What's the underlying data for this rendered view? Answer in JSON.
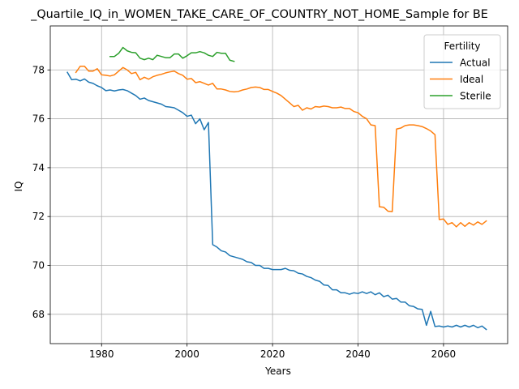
{
  "chart_data": {
    "type": "line",
    "title": "_Quartile_IQ_in_WOMEN_TAKE_CARE_OF_COUNTRY_NOT_HOME_Sample for BE",
    "xlabel": "Years",
    "ylabel": "IQ",
    "xlim": [
      1968,
      2075
    ],
    "ylim": [
      66.8,
      79.8
    ],
    "xticks": [
      1980,
      2000,
      2020,
      2040,
      2060
    ],
    "yticks": [
      68,
      70,
      72,
      74,
      76,
      78
    ],
    "grid": true,
    "legend": {
      "title": "Fertility",
      "placement": "top-right"
    },
    "series": [
      {
        "name": "Actual",
        "color": "#1f77b4",
        "points": [
          [
            1972,
            77.9
          ],
          [
            1973,
            77.6
          ],
          [
            1974,
            77.62
          ],
          [
            1975,
            77.55
          ],
          [
            1976,
            77.63
          ],
          [
            1977,
            77.5
          ],
          [
            1978,
            77.45
          ],
          [
            1979,
            77.35
          ],
          [
            1980,
            77.28
          ],
          [
            1981,
            77.15
          ],
          [
            1982,
            77.18
          ],
          [
            1983,
            77.14
          ],
          [
            1984,
            77.18
          ],
          [
            1985,
            77.2
          ],
          [
            1986,
            77.15
          ],
          [
            1987,
            77.05
          ],
          [
            1988,
            76.95
          ],
          [
            1989,
            76.8
          ],
          [
            1990,
            76.85
          ],
          [
            1991,
            76.75
          ],
          [
            1992,
            76.7
          ],
          [
            1993,
            76.65
          ],
          [
            1994,
            76.6
          ],
          [
            1995,
            76.5
          ],
          [
            1996,
            76.48
          ],
          [
            1997,
            76.45
          ],
          [
            1998,
            76.35
          ],
          [
            1999,
            76.25
          ],
          [
            2000,
            76.1
          ],
          [
            2001,
            76.15
          ],
          [
            2002,
            75.8
          ],
          [
            2003,
            76.0
          ],
          [
            2004,
            75.55
          ],
          [
            2005,
            75.85
          ],
          [
            2006,
            70.85
          ],
          [
            2007,
            70.75
          ],
          [
            2008,
            70.6
          ],
          [
            2009,
            70.55
          ],
          [
            2010,
            70.4
          ],
          [
            2011,
            70.35
          ],
          [
            2012,
            70.3
          ],
          [
            2013,
            70.25
          ],
          [
            2014,
            70.15
          ],
          [
            2015,
            70.12
          ],
          [
            2016,
            70.0
          ],
          [
            2017,
            70.0
          ],
          [
            2018,
            69.88
          ],
          [
            2019,
            69.88
          ],
          [
            2020,
            69.83
          ],
          [
            2021,
            69.83
          ],
          [
            2022,
            69.83
          ],
          [
            2023,
            69.88
          ],
          [
            2024,
            69.8
          ],
          [
            2025,
            69.78
          ],
          [
            2026,
            69.68
          ],
          [
            2027,
            69.65
          ],
          [
            2028,
            69.55
          ],
          [
            2029,
            69.5
          ],
          [
            2030,
            69.4
          ],
          [
            2031,
            69.35
          ],
          [
            2032,
            69.2
          ],
          [
            2033,
            69.18
          ],
          [
            2034,
            69.0
          ],
          [
            2035,
            69.0
          ],
          [
            2036,
            68.88
          ],
          [
            2037,
            68.88
          ],
          [
            2038,
            68.82
          ],
          [
            2039,
            68.88
          ],
          [
            2040,
            68.85
          ],
          [
            2041,
            68.92
          ],
          [
            2042,
            68.85
          ],
          [
            2043,
            68.92
          ],
          [
            2044,
            68.8
          ],
          [
            2045,
            68.88
          ],
          [
            2046,
            68.72
          ],
          [
            2047,
            68.78
          ],
          [
            2048,
            68.62
          ],
          [
            2049,
            68.65
          ],
          [
            2050,
            68.5
          ],
          [
            2051,
            68.5
          ],
          [
            2052,
            68.35
          ],
          [
            2053,
            68.32
          ],
          [
            2054,
            68.22
          ],
          [
            2055,
            68.2
          ],
          [
            2056,
            67.55
          ],
          [
            2057,
            68.12
          ],
          [
            2058,
            67.5
          ],
          [
            2059,
            67.52
          ],
          [
            2060,
            67.48
          ],
          [
            2061,
            67.52
          ],
          [
            2062,
            67.48
          ],
          [
            2063,
            67.55
          ],
          [
            2064,
            67.48
          ],
          [
            2065,
            67.55
          ],
          [
            2066,
            67.48
          ],
          [
            2067,
            67.55
          ],
          [
            2068,
            67.45
          ],
          [
            2069,
            67.52
          ],
          [
            2070,
            67.38
          ]
        ]
      },
      {
        "name": "Ideal",
        "color": "#ff7f0e",
        "points": [
          [
            1974,
            77.9
          ],
          [
            1975,
            78.15
          ],
          [
            1976,
            78.15
          ],
          [
            1977,
            77.95
          ],
          [
            1978,
            77.95
          ],
          [
            1979,
            78.05
          ],
          [
            1980,
            77.8
          ],
          [
            1981,
            77.78
          ],
          [
            1982,
            77.75
          ],
          [
            1983,
            77.8
          ],
          [
            1984,
            77.95
          ],
          [
            1985,
            78.1
          ],
          [
            1986,
            78.0
          ],
          [
            1987,
            77.85
          ],
          [
            1988,
            77.9
          ],
          [
            1989,
            77.6
          ],
          [
            1990,
            77.7
          ],
          [
            1991,
            77.62
          ],
          [
            1992,
            77.72
          ],
          [
            1993,
            77.78
          ],
          [
            1994,
            77.82
          ],
          [
            1995,
            77.88
          ],
          [
            1996,
            77.92
          ],
          [
            1997,
            77.95
          ],
          [
            1998,
            77.85
          ],
          [
            1999,
            77.78
          ],
          [
            2000,
            77.62
          ],
          [
            2001,
            77.65
          ],
          [
            2002,
            77.48
          ],
          [
            2003,
            77.52
          ],
          [
            2004,
            77.45
          ],
          [
            2005,
            77.38
          ],
          [
            2006,
            77.45
          ],
          [
            2007,
            77.22
          ],
          [
            2008,
            77.22
          ],
          [
            2009,
            77.18
          ],
          [
            2010,
            77.12
          ],
          [
            2011,
            77.1
          ],
          [
            2012,
            77.12
          ],
          [
            2013,
            77.18
          ],
          [
            2014,
            77.22
          ],
          [
            2015,
            77.28
          ],
          [
            2016,
            77.3
          ],
          [
            2017,
            77.28
          ],
          [
            2018,
            77.2
          ],
          [
            2019,
            77.2
          ],
          [
            2020,
            77.12
          ],
          [
            2021,
            77.05
          ],
          [
            2022,
            76.95
          ],
          [
            2023,
            76.8
          ],
          [
            2024,
            76.65
          ],
          [
            2025,
            76.5
          ],
          [
            2026,
            76.55
          ],
          [
            2027,
            76.35
          ],
          [
            2028,
            76.45
          ],
          [
            2029,
            76.4
          ],
          [
            2030,
            76.5
          ],
          [
            2031,
            76.48
          ],
          [
            2032,
            76.52
          ],
          [
            2033,
            76.5
          ],
          [
            2034,
            76.45
          ],
          [
            2035,
            76.45
          ],
          [
            2036,
            76.48
          ],
          [
            2037,
            76.42
          ],
          [
            2038,
            76.42
          ],
          [
            2039,
            76.3
          ],
          [
            2040,
            76.25
          ],
          [
            2041,
            76.1
          ],
          [
            2042,
            76.0
          ],
          [
            2043,
            75.75
          ],
          [
            2044,
            75.72
          ],
          [
            2045,
            72.4
          ],
          [
            2046,
            72.38
          ],
          [
            2047,
            72.22
          ],
          [
            2048,
            72.2
          ],
          [
            2049,
            75.58
          ],
          [
            2050,
            75.62
          ],
          [
            2051,
            75.72
          ],
          [
            2052,
            75.75
          ],
          [
            2053,
            75.75
          ],
          [
            2054,
            75.72
          ],
          [
            2055,
            75.68
          ],
          [
            2056,
            75.6
          ],
          [
            2057,
            75.5
          ],
          [
            2058,
            75.35
          ],
          [
            2059,
            71.88
          ],
          [
            2060,
            71.9
          ],
          [
            2061,
            71.68
          ],
          [
            2062,
            71.75
          ],
          [
            2063,
            71.58
          ],
          [
            2064,
            71.75
          ],
          [
            2065,
            71.6
          ],
          [
            2066,
            71.75
          ],
          [
            2067,
            71.65
          ],
          [
            2068,
            71.78
          ],
          [
            2069,
            71.68
          ],
          [
            2070,
            71.82
          ]
        ]
      },
      {
        "name": "Sterile",
        "color": "#2ca02c",
        "points": [
          [
            1982,
            78.55
          ],
          [
            1983,
            78.55
          ],
          [
            1984,
            78.68
          ],
          [
            1985,
            78.92
          ],
          [
            1986,
            78.78
          ],
          [
            1987,
            78.72
          ],
          [
            1988,
            78.7
          ],
          [
            1989,
            78.48
          ],
          [
            1990,
            78.42
          ],
          [
            1991,
            78.48
          ],
          [
            1992,
            78.42
          ],
          [
            1993,
            78.6
          ],
          [
            1994,
            78.55
          ],
          [
            1995,
            78.5
          ],
          [
            1996,
            78.5
          ],
          [
            1997,
            78.65
          ],
          [
            1998,
            78.65
          ],
          [
            1999,
            78.48
          ],
          [
            2000,
            78.58
          ],
          [
            2001,
            78.7
          ],
          [
            2002,
            78.7
          ],
          [
            2003,
            78.75
          ],
          [
            2004,
            78.7
          ],
          [
            2005,
            78.6
          ],
          [
            2006,
            78.55
          ],
          [
            2007,
            78.72
          ],
          [
            2008,
            78.68
          ],
          [
            2009,
            78.68
          ],
          [
            2010,
            78.4
          ],
          [
            2011,
            78.35
          ]
        ]
      }
    ]
  }
}
